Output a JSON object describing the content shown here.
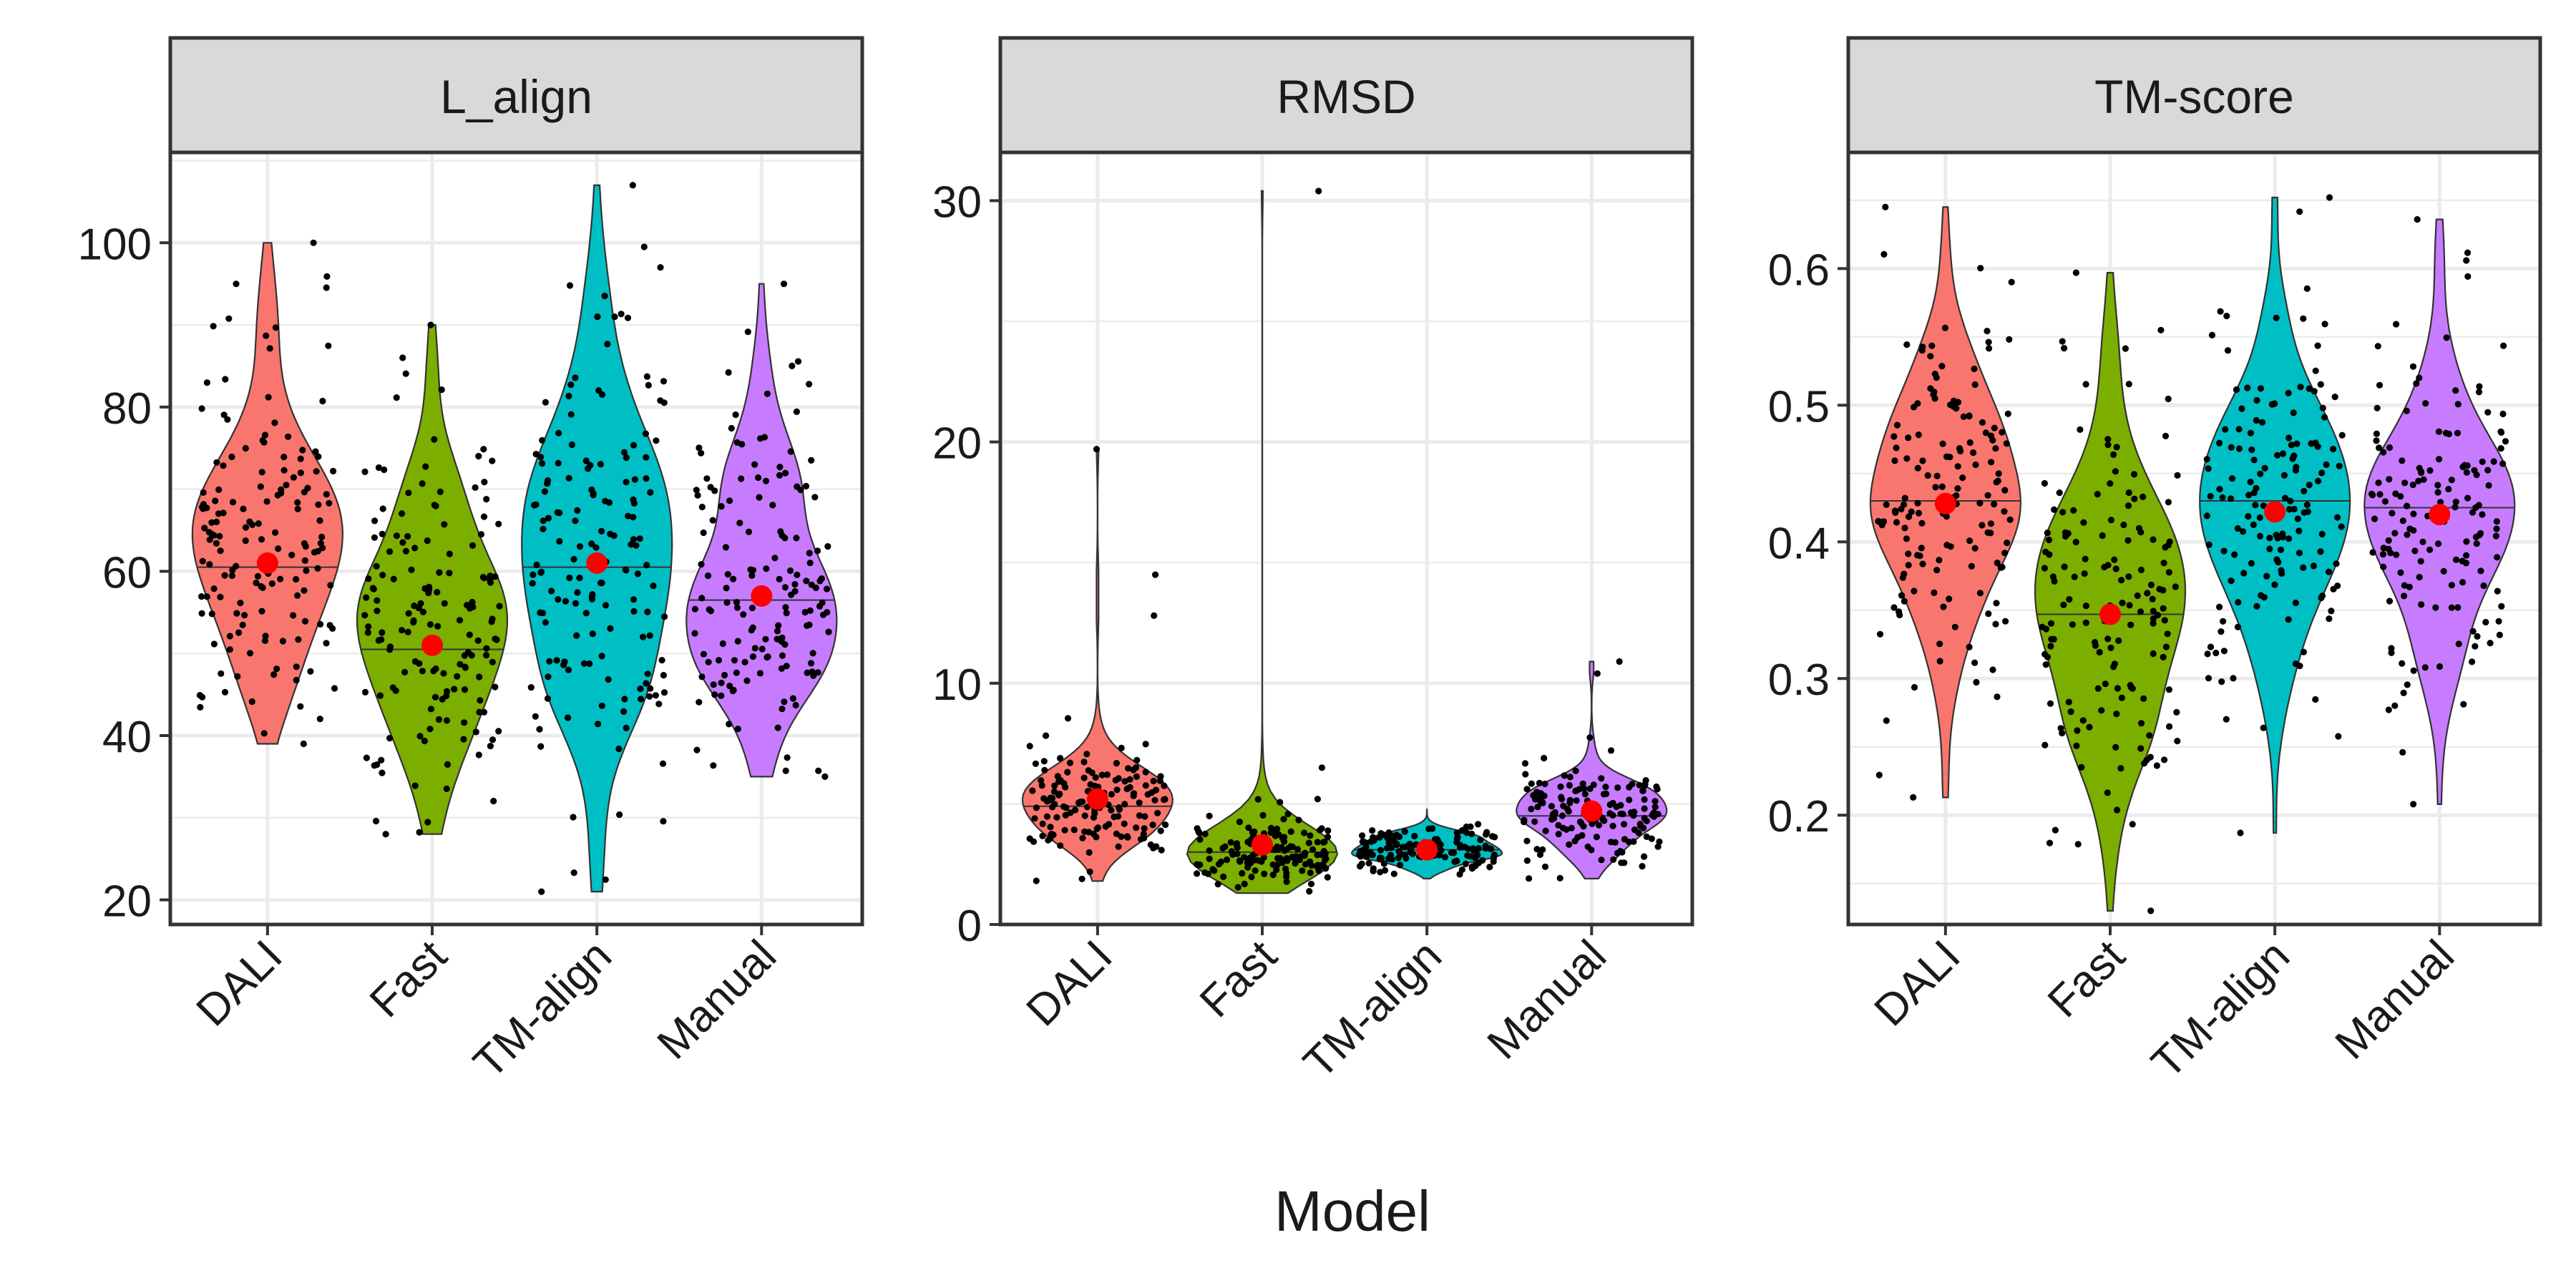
{
  "figure": {
    "xlabel": "Model"
  },
  "colors": {
    "DALI": "#F8766D",
    "Fast": "#7CAE00",
    "TM-align": "#00BFC4",
    "Manual": "#C77CFF",
    "mean_point": "#FF0000",
    "jitter_point": "#000000",
    "strip_fill": "#D9D9D9",
    "grid": "#EBEBEB"
  },
  "chart_data": [
    {
      "type": "violin",
      "title": "L_align",
      "categories": [
        "DALI",
        "Fast",
        "TM-align",
        "Manual"
      ],
      "ylim": [
        17,
        111
      ],
      "yticks": [
        20,
        40,
        60,
        80,
        100
      ],
      "ytick_labels": [
        "20",
        "40",
        "60",
        "80",
        "100"
      ],
      "grid": true,
      "series": [
        {
          "category": "DALI",
          "min": 39,
          "max": 100,
          "median": 60.5,
          "mean": 61,
          "outliers": [
            100,
            95,
            39
          ]
        },
        {
          "category": "Fast",
          "min": 28,
          "max": 90,
          "median": 50.5,
          "mean": 51,
          "outliers": [
            90,
            86,
            28
          ]
        },
        {
          "category": "TM-align",
          "min": 21,
          "max": 107,
          "median": 60.5,
          "mean": 61,
          "outliers": [
            107,
            97,
            91,
            21
          ]
        },
        {
          "category": "Manual",
          "min": 35,
          "max": 95,
          "median": 56.5,
          "mean": 57,
          "outliers": [
            95,
            85,
            35
          ]
        }
      ]
    },
    {
      "type": "violin",
      "title": "RMSD",
      "categories": [
        "DALI",
        "Fast",
        "TM-align",
        "Manual"
      ],
      "ylim": [
        0,
        32
      ],
      "yticks": [
        0,
        10,
        20,
        30
      ],
      "ytick_labels": [
        "0",
        "10",
        "20",
        "30"
      ],
      "grid": true,
      "series": [
        {
          "category": "DALI",
          "min": 1.8,
          "max": 19.7,
          "median": 4.9,
          "mean": 5.2,
          "outliers": [
            19.7,
            14.5,
            12.8
          ]
        },
        {
          "category": "Fast",
          "min": 1.3,
          "max": 30.4,
          "median": 3.0,
          "mean": 3.3,
          "outliers": [
            30.4,
            6.5
          ]
        },
        {
          "category": "TM-align",
          "min": 1.9,
          "max": 4.8,
          "median": 3.1,
          "mean": 3.1,
          "outliers": []
        },
        {
          "category": "Manual",
          "min": 1.9,
          "max": 10.9,
          "median": 4.5,
          "mean": 4.7,
          "outliers": [
            10.9,
            10.4
          ]
        }
      ]
    },
    {
      "type": "violin",
      "title": "TM-score",
      "categories": [
        "DALI",
        "Fast",
        "TM-align",
        "Manual"
      ],
      "ylim": [
        0.12,
        0.685
      ],
      "yticks": [
        0.2,
        0.3,
        0.4,
        0.5,
        0.6
      ],
      "ytick_labels": [
        "0.2",
        "0.3",
        "0.4",
        "0.5",
        "0.6"
      ],
      "grid": true,
      "series": [
        {
          "category": "DALI",
          "min": 0.213,
          "max": 0.645,
          "median": 0.43,
          "mean": 0.428,
          "outliers": [
            0.645,
            0.213
          ]
        },
        {
          "category": "Fast",
          "min": 0.13,
          "max": 0.597,
          "median": 0.347,
          "mean": 0.347,
          "outliers": [
            0.597,
            0.13
          ]
        },
        {
          "category": "TM-align",
          "min": 0.187,
          "max": 0.652,
          "median": 0.43,
          "mean": 0.422,
          "outliers": [
            0.652,
            0.187
          ]
        },
        {
          "category": "Manual",
          "min": 0.208,
          "max": 0.636,
          "median": 0.425,
          "mean": 0.42,
          "outliers": [
            0.636,
            0.208
          ]
        }
      ]
    }
  ]
}
